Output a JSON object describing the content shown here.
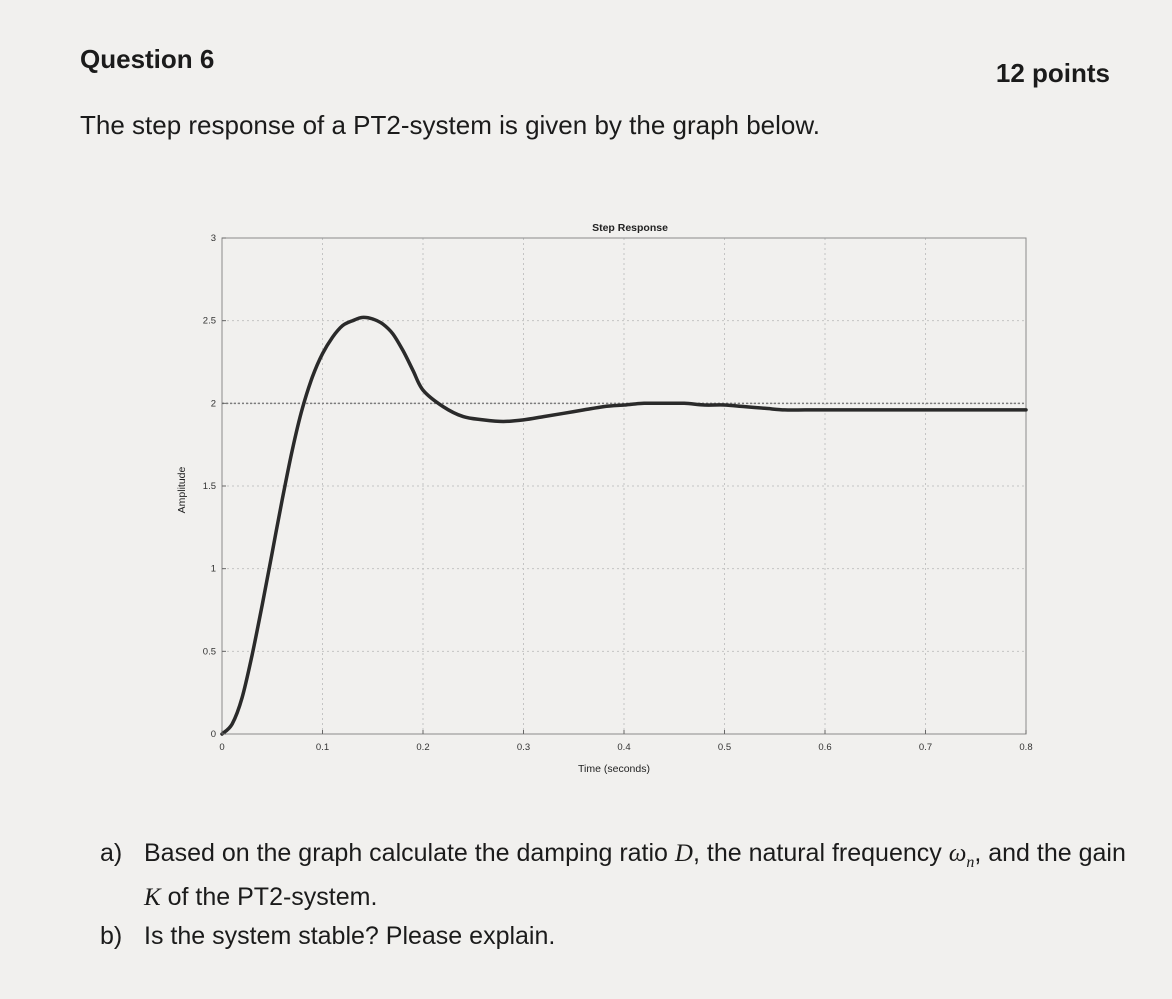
{
  "question": {
    "title": "Question 6",
    "points": "12 points",
    "intro": "The step response of a PT2-system is given by the graph below."
  },
  "chart_data": {
    "type": "line",
    "title": "Step Response",
    "xlabel": "Time (seconds)",
    "ylabel": "Amplitude",
    "xlim": [
      0,
      0.8
    ],
    "ylim": [
      0,
      3
    ],
    "xticks": [
      0,
      0.1,
      0.2,
      0.3,
      0.4,
      0.5,
      0.6,
      0.7,
      0.8
    ],
    "xtick_labels": [
      "0",
      "0.1",
      "0.2",
      "0.3",
      "0.4",
      "0.5",
      "0.6",
      "0.7",
      "0.8"
    ],
    "yticks": [
      0,
      0.5,
      1,
      1.5,
      2,
      2.5,
      3
    ],
    "ytick_labels": [
      "0",
      "0.5",
      "1",
      "1.5",
      "2",
      "2.5",
      "3"
    ],
    "grid": true,
    "reference_line": {
      "y": 2,
      "style": "dotted"
    },
    "series": [
      {
        "color": "#2a2a2a",
        "x": [
          0,
          0.01,
          0.02,
          0.03,
          0.04,
          0.05,
          0.06,
          0.07,
          0.08,
          0.09,
          0.1,
          0.11,
          0.12,
          0.13,
          0.14,
          0.15,
          0.16,
          0.17,
          0.18,
          0.19,
          0.2,
          0.22,
          0.24,
          0.26,
          0.28,
          0.3,
          0.32,
          0.34,
          0.36,
          0.38,
          0.4,
          0.42,
          0.44,
          0.46,
          0.48,
          0.5,
          0.52,
          0.54,
          0.56,
          0.58,
          0.6,
          0.65,
          0.7,
          0.75,
          0.8
        ],
        "y": [
          0,
          0.06,
          0.22,
          0.48,
          0.78,
          1.1,
          1.42,
          1.72,
          1.97,
          2.16,
          2.3,
          2.4,
          2.47,
          2.5,
          2.52,
          2.51,
          2.48,
          2.42,
          2.32,
          2.2,
          2.08,
          1.98,
          1.92,
          1.9,
          1.89,
          1.9,
          1.92,
          1.94,
          1.96,
          1.98,
          1.99,
          2.0,
          2.0,
          2.0,
          1.99,
          1.99,
          1.98,
          1.97,
          1.96,
          1.96,
          1.96,
          1.96,
          1.96,
          1.96,
          1.96
        ]
      }
    ]
  },
  "tasks": [
    {
      "label": "a)",
      "text_1": "Based on the graph calculate the damping ratio ",
      "sym_1": "D",
      "text_2": ", the natural frequency ",
      "sym_2": "ω",
      "sym_2_sub": "n",
      "text_3": ", and the gain ",
      "sym_3": "K",
      "text_4": " of the PT2-system."
    },
    {
      "label": "b)",
      "text": "Is the system stable? Please explain."
    }
  ]
}
